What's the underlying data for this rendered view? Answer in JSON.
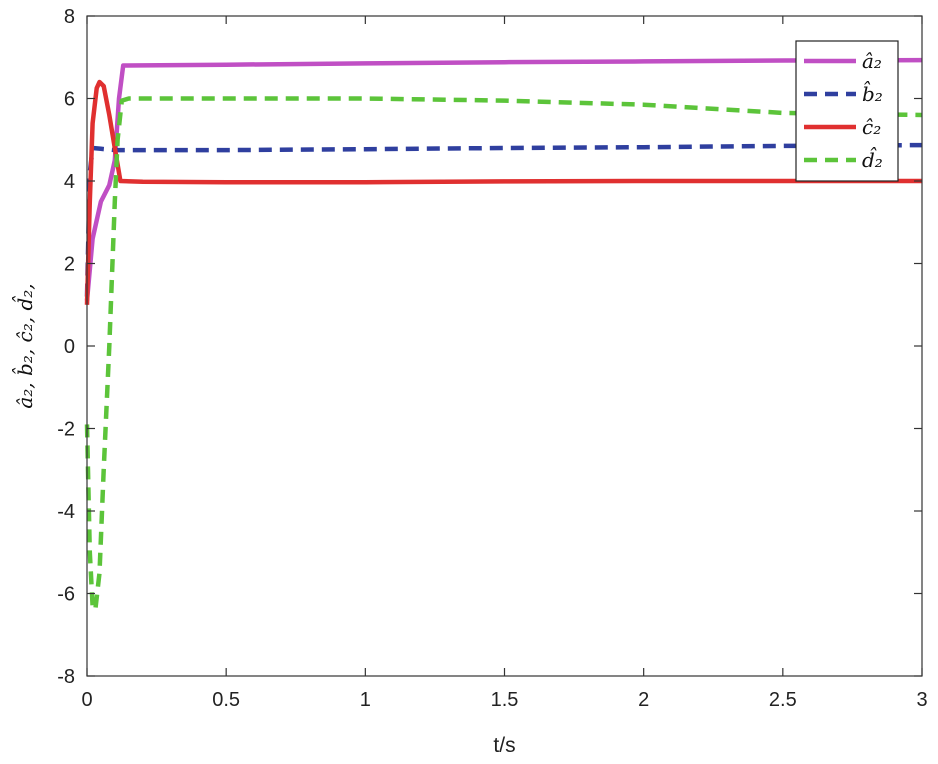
{
  "chart_data": {
    "type": "line",
    "xlabel": "t/s",
    "ylabel": "â₂, b̂₂, ĉ₂, d̂₂,",
    "xlim": [
      0,
      3
    ],
    "ylim": [
      -8,
      8
    ],
    "x_ticks": [
      "0",
      "0.5",
      "1",
      "1.5",
      "2",
      "2.5",
      "3"
    ],
    "y_ticks": [
      "-8",
      "-6",
      "-4",
      "-2",
      "0",
      "2",
      "4",
      "6",
      "8"
    ],
    "grid": false,
    "legend_position": "top-right",
    "series": [
      {
        "name": "â₂",
        "color": "#c04fc4",
        "style": "solid",
        "points": [
          [
            0,
            1.1
          ],
          [
            0.02,
            2.6
          ],
          [
            0.05,
            3.5
          ],
          [
            0.08,
            3.9
          ],
          [
            0.1,
            4.5
          ],
          [
            0.115,
            6.0
          ],
          [
            0.13,
            6.8
          ],
          [
            0.5,
            6.82
          ],
          [
            1.0,
            6.85
          ],
          [
            1.5,
            6.88
          ],
          [
            2.0,
            6.9
          ],
          [
            2.5,
            6.92
          ],
          [
            3.0,
            6.93
          ]
        ]
      },
      {
        "name": "b̂₂",
        "color": "#2f3f9f",
        "style": "dashed",
        "points": [
          [
            0,
            1.2
          ],
          [
            0.01,
            4.2
          ],
          [
            0.02,
            4.8
          ],
          [
            0.05,
            4.78
          ],
          [
            0.1,
            4.75
          ],
          [
            0.5,
            4.75
          ],
          [
            1.0,
            4.77
          ],
          [
            1.5,
            4.8
          ],
          [
            2.0,
            4.82
          ],
          [
            2.5,
            4.85
          ],
          [
            3.0,
            4.87
          ]
        ]
      },
      {
        "name": "ĉ₂",
        "color": "#e03030",
        "style": "solid",
        "points": [
          [
            0,
            1.0
          ],
          [
            0.01,
            3.5
          ],
          [
            0.02,
            5.4
          ],
          [
            0.035,
            6.25
          ],
          [
            0.045,
            6.4
          ],
          [
            0.06,
            6.3
          ],
          [
            0.08,
            5.6
          ],
          [
            0.1,
            4.8
          ],
          [
            0.12,
            4.0
          ],
          [
            0.2,
            3.98
          ],
          [
            0.5,
            3.97
          ],
          [
            1.0,
            3.97
          ],
          [
            1.5,
            3.99
          ],
          [
            2.0,
            4.0
          ],
          [
            2.5,
            4.0
          ],
          [
            3.0,
            4.0
          ]
        ]
      },
      {
        "name": "d̂₂",
        "color": "#5cc43a",
        "style": "dashed",
        "points": [
          [
            0,
            -1.9
          ],
          [
            0.01,
            -5.0
          ],
          [
            0.02,
            -6.3
          ],
          [
            0.03,
            -6.4
          ],
          [
            0.045,
            -5.5
          ],
          [
            0.06,
            -3.0
          ],
          [
            0.08,
            0.0
          ],
          [
            0.1,
            3.5
          ],
          [
            0.11,
            5.0
          ],
          [
            0.125,
            5.95
          ],
          [
            0.15,
            6.0
          ],
          [
            0.5,
            6.0
          ],
          [
            1.0,
            6.0
          ],
          [
            1.5,
            5.95
          ],
          [
            2.0,
            5.85
          ],
          [
            2.5,
            5.65
          ],
          [
            3.0,
            5.6
          ]
        ]
      }
    ]
  }
}
